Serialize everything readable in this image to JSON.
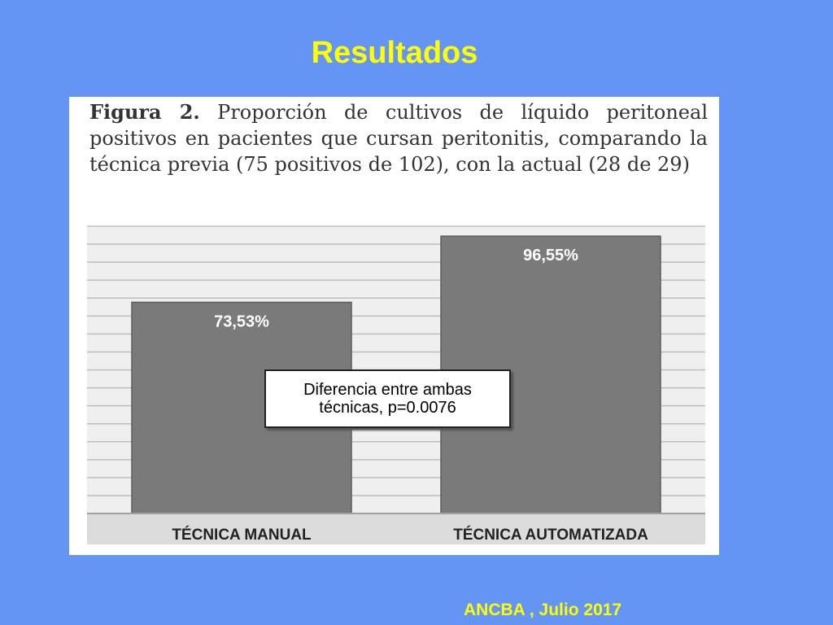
{
  "slide": {
    "title": "Resultados",
    "footer": "ANCBA , Julio 2017"
  },
  "figure": {
    "label": "Figura 2.",
    "caption": "Proporción de cultivos de líquido peritoneal positivos en pacientes que cursan peritonitis, comparando la técnica previa (75 positivos de 102), con la actual (28 de 29)"
  },
  "annotation": {
    "line1": "Diferencia entre ambas",
    "line2": "técnicas, p=0.0076"
  },
  "chart_data": {
    "type": "bar",
    "categories": [
      "TÉCNICA MANUAL",
      "TÉCNICA AUTOMATIZADA"
    ],
    "values": [
      73.53,
      96.55
    ],
    "value_labels": [
      "73,53%",
      "96,55%"
    ],
    "ylim": [
      0,
      100
    ],
    "grid": true,
    "bar_color": "#7a7a7a"
  }
}
